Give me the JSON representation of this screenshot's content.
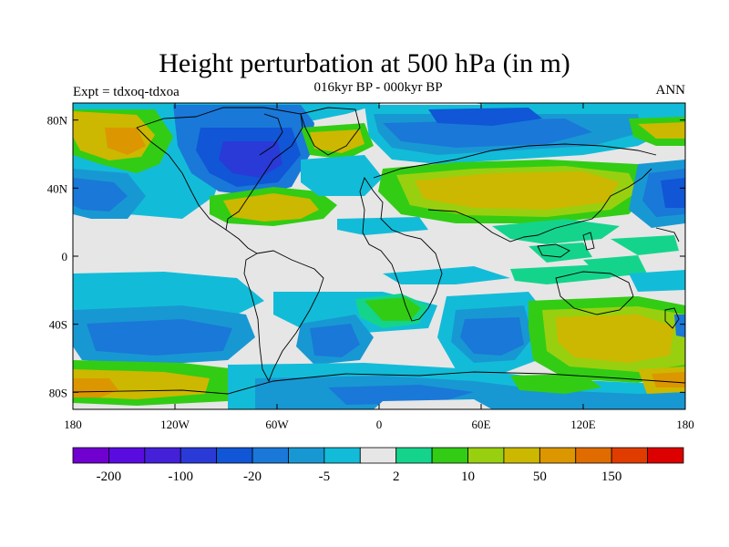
{
  "title": "Height perturbation at 500 hPa (in m)",
  "subtitle": "016kyr BP - 000kyr BP",
  "experiment": "Expt = tdxoq-tdxoa",
  "season": "ANN",
  "map": {
    "lon_range": [
      -180,
      180
    ],
    "lat_range": [
      -90,
      90
    ],
    "y_ticks": [
      {
        "value": 80,
        "label": "80N"
      },
      {
        "value": 40,
        "label": "40N"
      },
      {
        "value": 0,
        "label": "0"
      },
      {
        "value": -40,
        "label": "40S"
      },
      {
        "value": -80,
        "label": "80S"
      }
    ],
    "x_ticks": [
      {
        "value": -180,
        "label": "180"
      },
      {
        "value": -120,
        "label": "120W"
      },
      {
        "value": -60,
        "label": "60W"
      },
      {
        "value": 0,
        "label": "0"
      },
      {
        "value": 60,
        "label": "60E"
      },
      {
        "value": 120,
        "label": "120E"
      },
      {
        "value": 180,
        "label": "180"
      }
    ],
    "background_color": "#e6e6e6"
  },
  "colorbar": {
    "colors": [
      "#7000d0",
      "#5a0ce0",
      "#4420d8",
      "#2a3ad6",
      "#1056d6",
      "#1a78d8",
      "#1898d2",
      "#12bcd8",
      "#e6e6e6",
      "#14d48c",
      "#32cc14",
      "#98d010",
      "#ccb800",
      "#dc9600",
      "#e06c00",
      "#e03c00",
      "#dc0000"
    ],
    "labels": [
      {
        "boundary": 1,
        "text": "-200"
      },
      {
        "boundary": 3,
        "text": "-100"
      },
      {
        "boundary": 5,
        "text": "-20"
      },
      {
        "boundary": 7,
        "text": "-5"
      },
      {
        "boundary": 9,
        "text": "2"
      },
      {
        "boundary": 11,
        "text": "10"
      },
      {
        "boundary": 13,
        "text": "50"
      },
      {
        "boundary": 15,
        "text": "150"
      }
    ]
  }
}
